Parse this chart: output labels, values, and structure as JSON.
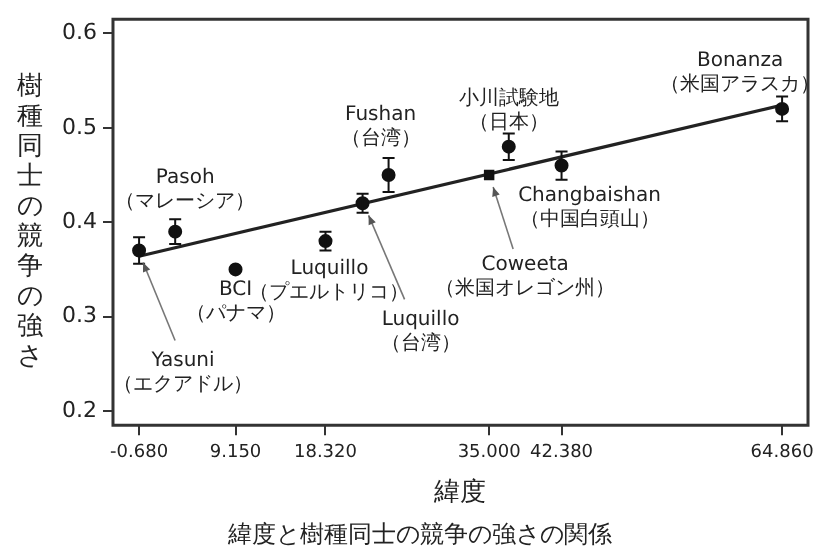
{
  "chart_data": {
    "type": "scatter",
    "xlabel": "緯度",
    "ylabel": "樹種同士の競争の強さ",
    "xlim": [
      -3.34,
      67.5
    ],
    "ylim": [
      0.185,
      0.615
    ],
    "xticks": [
      {
        "value": -0.68,
        "label": "-0.680"
      },
      {
        "value": 9.15,
        "label": "9.150"
      },
      {
        "value": 18.32,
        "label": "18.320"
      },
      {
        "value": 35,
        "label": "35.000"
      },
      {
        "value": 42.38,
        "label": "42.380"
      },
      {
        "value": 64.86,
        "label": "64.860"
      }
    ],
    "yticks": [
      0.2,
      0.3,
      0.4,
      0.5,
      0.6
    ],
    "grid": false,
    "legend": false,
    "series": [
      {
        "type": "scatter",
        "marker": "circle",
        "color": "#111111",
        "x": [
          -0.68,
          3.0,
          9.15,
          18.32,
          22.1,
          24.75,
          37.0,
          42.38,
          64.86
        ],
        "values": [
          0.37,
          0.39,
          0.35,
          0.38,
          0.42,
          0.45,
          0.48,
          0.46,
          0.52
        ],
        "errors": [
          0.014,
          0.013,
          null,
          0.01,
          0.01,
          0.018,
          0.014,
          0.015,
          0.013
        ]
      },
      {
        "type": "scatter",
        "marker": "square",
        "color": "#111111",
        "x": [
          35
        ],
        "values": [
          0.45
        ]
      },
      {
        "type": "line",
        "marker": "none",
        "color": "#222222",
        "x": [
          -0.68,
          64.86
        ],
        "values": [
          0.364,
          0.524
        ]
      }
    ],
    "annotations": [
      {
        "text": "Yasuni（エクアドル）",
        "x": -0.68,
        "y": 0.37
      },
      {
        "text": "Pasoh（マレーシア）",
        "x": 3.0,
        "y": 0.39
      },
      {
        "text": "BCI（パナマ）",
        "x": 9.15,
        "y": 0.35
      },
      {
        "text": "Luquillo（プエルトリコ）",
        "x": 18.32,
        "y": 0.38
      },
      {
        "text": "Luquillo（台湾）",
        "x": 22.1,
        "y": 0.42
      },
      {
        "text": "Fushan（台湾）",
        "x": 24.75,
        "y": 0.45
      },
      {
        "text": "小川試験地（日本）",
        "x": 37.0,
        "y": 0.48
      },
      {
        "text": "Changbaishan（中国白頭山）",
        "x": 42.38,
        "y": 0.46
      },
      {
        "text": "Coweeta（米国オレゴン州）",
        "x": 35,
        "y": 0.45
      },
      {
        "text": "Bonanza（米国アラスカ）",
        "x": 64.86,
        "y": 0.52
      },
      "緯度と樹種同士の競争の強さの関係"
    ]
  }
}
